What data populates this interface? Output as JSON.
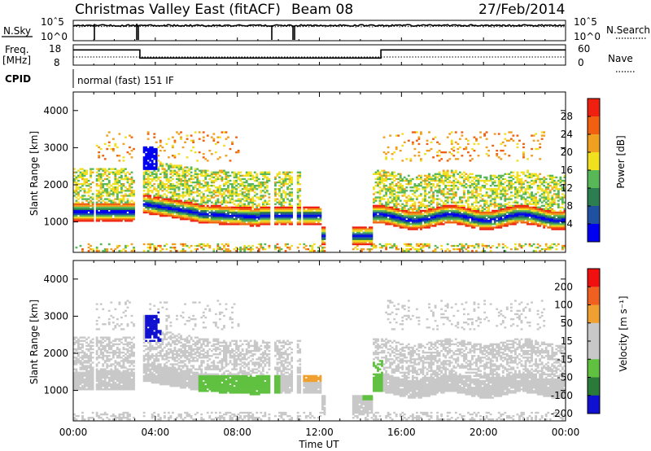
{
  "header": {
    "title": "Christmas Valley East (fitACF)",
    "beam": "Beam 08",
    "date": "27/Feb/2014"
  },
  "left_labels": {
    "nsky": "N.Sky",
    "freq_line1": "Freq.",
    "freq_line2": "[MHz]",
    "cpid": "CPID"
  },
  "right_labels": {
    "nsearch": "N.Search",
    "nave": "Nave"
  },
  "cpid_text": "normal (fast) 151 IF",
  "chart_data": [
    {
      "type": "line",
      "name": "noise",
      "left_axis": {
        "ticks": [
          "10^5",
          "10^0"
        ],
        "tick_display": [
          "10ˆ5",
          "10^0"
        ]
      },
      "right_axis": {
        "ticks": [
          "10^5",
          "10^0"
        ],
        "tick_display": [
          "10ˆ5",
          "10^0"
        ]
      },
      "series": [
        {
          "name": "N.Sky",
          "style": "solid",
          "level": 0.75,
          "dropouts": [
            "01:00",
            "03:05",
            "03:12",
            "09:40",
            "10:45"
          ]
        },
        {
          "name": "N.Search",
          "style": "dotted",
          "level": 0.7
        }
      ]
    },
    {
      "type": "line",
      "name": "frequency_nave",
      "left_axis": {
        "ticks": [
          "18",
          "8"
        ],
        "range": [
          8,
          18
        ]
      },
      "right_axis": {
        "ticks": [
          "60",
          "0"
        ],
        "range": [
          0,
          60
        ]
      },
      "series": [
        {
          "name": "Freq.",
          "style": "solid",
          "x": [
            "00:00",
            "03:15",
            "03:15",
            "15:00",
            "15:00",
            "24:00"
          ],
          "y": [
            15.5,
            15.5,
            11.5,
            11.5,
            15.5,
            15.5
          ]
        },
        {
          "name": "Nave",
          "style": "dotted",
          "value": 24
        }
      ]
    },
    {
      "type": "heatmap",
      "name": "power",
      "title": "",
      "xlabel": "",
      "ylabel": "Slant Range [km]",
      "xlim": [
        "00:00",
        "24:00"
      ],
      "ylim": [
        180,
        4500
      ],
      "yticks": [
        1000,
        2000,
        3000,
        4000
      ],
      "colorbar": {
        "label": "Power [dB]",
        "ticks": [
          4,
          8,
          12,
          16,
          20,
          24,
          28
        ],
        "colors": [
          "#0000f0",
          "#2050a0",
          "#2c7e50",
          "#58b858",
          "#f0e020",
          "#f0a020",
          "#f06010",
          "#f02010"
        ]
      }
    },
    {
      "type": "heatmap",
      "name": "velocity",
      "title": "",
      "xlabel": "Time UT",
      "ylabel": "Slant Range [km]",
      "xlim": [
        "00:00",
        "24:00"
      ],
      "ylim": [
        180,
        4500
      ],
      "xticks": [
        "00:00",
        "04:00",
        "08:00",
        "12:00",
        "16:00",
        "20:00",
        "00:00"
      ],
      "yticks": [
        1000,
        2000,
        3000,
        4000
      ],
      "colorbar": {
        "label": "Velocity [m s⁻¹]",
        "ticks": [
          200,
          100,
          50,
          15,
          -15,
          -50,
          -100,
          -200
        ],
        "colors": [
          "#1010d0",
          "#2a7a3a",
          "#60c040",
          "#c8c8c8",
          "#c8c8c8",
          "#f0a030",
          "#f06020",
          "#f01010"
        ]
      }
    }
  ]
}
